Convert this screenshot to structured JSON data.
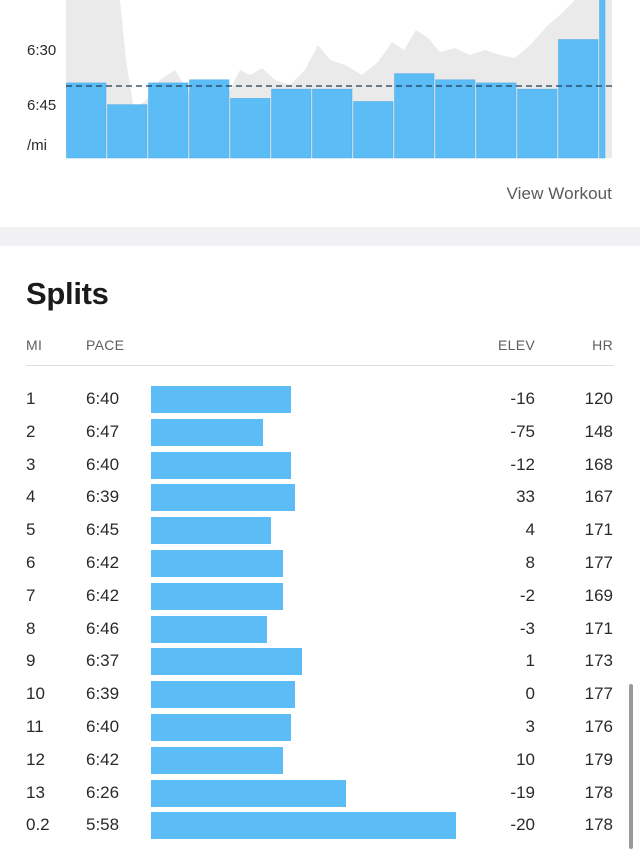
{
  "chart": {
    "y_labels": [
      "6:30",
      "6:45",
      "/mi"
    ],
    "view_workout_label": "View Workout",
    "colors": {
      "bar": "#5cbcf6",
      "bar_stroke": "#4fa9e0",
      "background_area": "#eaeaea",
      "average_line": "#1c3b55"
    },
    "chart_data": {
      "type": "bar",
      "title": "",
      "xlabel": "",
      "ylabel": "/mi",
      "y_ticks": [
        "6:30",
        "6:45"
      ],
      "average_pace_line": "dashed",
      "categories": [
        "1",
        "2",
        "3",
        "4",
        "5",
        "6",
        "7",
        "8",
        "9",
        "10",
        "11",
        "12",
        "13",
        "0.2"
      ],
      "pace_seconds": [
        400,
        407,
        400,
        399,
        405,
        402,
        402,
        406,
        397,
        399,
        400,
        402,
        386,
        358
      ],
      "ylim_seconds": [
        420,
        380
      ]
    }
  },
  "splits": {
    "title": "Splits",
    "columns": {
      "mi": "MI",
      "pace": "PACE",
      "elev": "ELEV",
      "hr": "HR"
    },
    "rows": [
      {
        "mi": "1",
        "pace": "6:40",
        "elev": "-16",
        "hr": "120",
        "pace_seconds": 400
      },
      {
        "mi": "2",
        "pace": "6:47",
        "elev": "-75",
        "hr": "148",
        "pace_seconds": 407
      },
      {
        "mi": "3",
        "pace": "6:40",
        "elev": "-12",
        "hr": "168",
        "pace_seconds": 400
      },
      {
        "mi": "4",
        "pace": "6:39",
        "elev": "33",
        "hr": "167",
        "pace_seconds": 399
      },
      {
        "mi": "5",
        "pace": "6:45",
        "elev": "4",
        "hr": "171",
        "pace_seconds": 405
      },
      {
        "mi": "6",
        "pace": "6:42",
        "elev": "8",
        "hr": "177",
        "pace_seconds": 402
      },
      {
        "mi": "7",
        "pace": "6:42",
        "elev": "-2",
        "hr": "169",
        "pace_seconds": 402
      },
      {
        "mi": "8",
        "pace": "6:46",
        "elev": "-3",
        "hr": "171",
        "pace_seconds": 406
      },
      {
        "mi": "9",
        "pace": "6:37",
        "elev": "1",
        "hr": "173",
        "pace_seconds": 397
      },
      {
        "mi": "10",
        "pace": "6:39",
        "elev": "0",
        "hr": "177",
        "pace_seconds": 399
      },
      {
        "mi": "11",
        "pace": "6:40",
        "elev": "3",
        "hr": "176",
        "pace_seconds": 400
      },
      {
        "mi": "12",
        "pace": "6:42",
        "elev": "10",
        "hr": "179",
        "pace_seconds": 402
      },
      {
        "mi": "13",
        "pace": "6:26",
        "elev": "-19",
        "hr": "178",
        "pace_seconds": 386
      },
      {
        "mi": "0.2",
        "pace": "5:58",
        "elev": "-20",
        "hr": "178",
        "pace_seconds": 358
      }
    ]
  }
}
